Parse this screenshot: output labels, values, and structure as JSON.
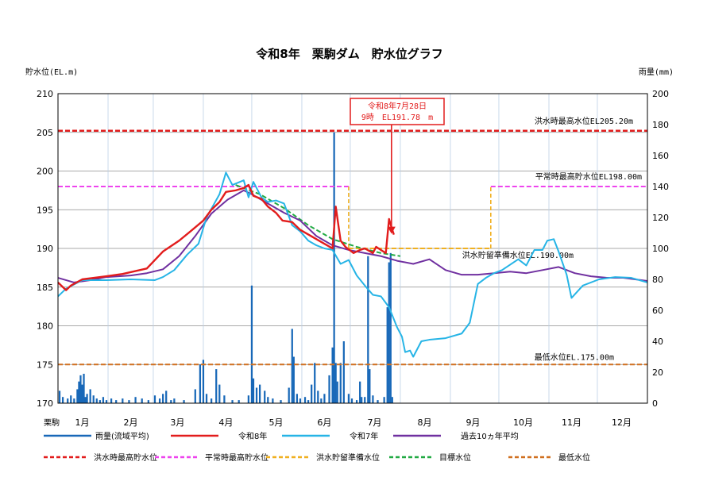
{
  "title": "令和8年　栗駒ダム　貯水位グラフ",
  "chart_data": {
    "type": "line",
    "ylabel_left": "貯水位(EL.m)",
    "ylabel_right": "雨量(mm)",
    "ylim_left": [
      170,
      210
    ],
    "ylim_right": [
      0,
      200
    ],
    "yticks_left": [
      "170",
      "175",
      "180",
      "185",
      "190",
      "195",
      "200",
      "205",
      "210"
    ],
    "yticks_right": [
      "0",
      "20",
      "40",
      "60",
      "80",
      "100",
      "120",
      "140",
      "160",
      "180",
      "200"
    ],
    "x_domain": [
      0,
      365
    ],
    "x_corner_label": "栗駒",
    "months": [
      {
        "label": "1月",
        "day": 15
      },
      {
        "label": "2月",
        "day": 45
      },
      {
        "label": "3月",
        "day": 74
      },
      {
        "label": "4月",
        "day": 104
      },
      {
        "label": "5月",
        "day": 135
      },
      {
        "label": "6月",
        "day": 165
      },
      {
        "label": "7月",
        "day": 196
      },
      {
        "label": "8月",
        "day": 227
      },
      {
        "label": "9月",
        "day": 257
      },
      {
        "label": "10月",
        "day": 288
      },
      {
        "label": "11月",
        "day": 318
      },
      {
        "label": "12月",
        "day": 349
      }
    ],
    "month_gridlines": [
      31,
      59,
      90,
      120,
      151,
      181,
      212,
      243,
      273,
      304,
      334
    ],
    "grid": true,
    "legend_placement": "bottom",
    "annotation": {
      "line1": "令和8年7月28日",
      "line2": "9時　EL191.78　m",
      "day": 208,
      "value": 191.78,
      "color": "#e21c1c"
    },
    "reference_lines": [
      {
        "name": "洪水時最高貯水位",
        "label": "洪水時最高水位EL205.20m",
        "value": 205.2,
        "color": "#e21c1c"
      },
      {
        "name": "平常時最高貯水位",
        "label": "平常時最高貯水位EL198.00m",
        "value": 198.0,
        "color": "#ee44ee",
        "segments": [
          [
            0,
            180,
            198.0
          ],
          [
            268,
            365,
            198.0
          ]
        ]
      },
      {
        "name": "洪水貯留準備水位",
        "label": "洪水貯留準備水位EL.190.00m",
        "value": 190.0,
        "color": "#f0b020",
        "segments": [
          [
            180,
            268,
            190.0
          ]
        ]
      },
      {
        "name": "最低水位",
        "label": "最低水位EL.175.00m",
        "value": 175.0,
        "color": "#d07020"
      }
    ],
    "target_line": {
      "name": "目標水位",
      "color": "#22aa44",
      "points": [
        [
          110,
          198.2
        ],
        [
          125,
          197.0
        ],
        [
          140,
          195.2
        ],
        [
          155,
          193.0
        ],
        [
          170,
          191.2
        ],
        [
          185,
          190.2
        ],
        [
          200,
          189.4
        ],
        [
          212,
          189.0
        ]
      ]
    },
    "series": [
      {
        "name": "令和8年",
        "color": "#e21c1c",
        "points": [
          [
            0,
            185.6
          ],
          [
            5,
            184.6
          ],
          [
            8,
            185.2
          ],
          [
            15,
            186.0
          ],
          [
            30,
            186.4
          ],
          [
            40,
            186.7
          ],
          [
            55,
            187.4
          ],
          [
            65,
            189.6
          ],
          [
            75,
            191.0
          ],
          [
            82,
            192.2
          ],
          [
            90,
            193.6
          ],
          [
            95,
            195.0
          ],
          [
            100,
            196.0
          ],
          [
            104,
            197.3
          ],
          [
            110,
            197.5
          ],
          [
            115,
            197.8
          ],
          [
            118,
            198.2
          ],
          [
            121,
            196.8
          ],
          [
            126,
            196.4
          ],
          [
            130,
            195.4
          ],
          [
            135,
            194.6
          ],
          [
            139,
            193.6
          ],
          [
            145,
            193.4
          ],
          [
            150,
            192.4
          ],
          [
            155,
            191.8
          ],
          [
            160,
            191.2
          ],
          [
            165,
            190.6
          ],
          [
            170,
            190.0
          ],
          [
            172,
            195.4
          ],
          [
            175,
            191.0
          ],
          [
            178,
            190.2
          ],
          [
            183,
            189.4
          ],
          [
            187,
            189.8
          ],
          [
            190,
            190.0
          ],
          [
            195,
            189.4
          ],
          [
            197,
            190.2
          ],
          [
            200,
            189.8
          ],
          [
            203,
            189.4
          ],
          [
            205,
            193.8
          ],
          [
            207,
            192.4
          ],
          [
            208,
            191.78
          ]
        ]
      },
      {
        "name": "令和7年",
        "color": "#26b4e6",
        "points": [
          [
            0,
            183.8
          ],
          [
            5,
            184.8
          ],
          [
            15,
            185.9
          ],
          [
            30,
            185.9
          ],
          [
            45,
            186.0
          ],
          [
            60,
            185.9
          ],
          [
            65,
            186.3
          ],
          [
            72,
            187.2
          ],
          [
            80,
            189.2
          ],
          [
            87,
            190.6
          ],
          [
            92,
            194.0
          ],
          [
            100,
            197.0
          ],
          [
            104,
            199.8
          ],
          [
            108,
            198.2
          ],
          [
            115,
            198.8
          ],
          [
            118,
            196.6
          ],
          [
            121,
            198.6
          ],
          [
            126,
            196.6
          ],
          [
            130,
            196.0
          ],
          [
            135,
            196.2
          ],
          [
            140,
            195.8
          ],
          [
            145,
            193.0
          ],
          [
            150,
            192.2
          ],
          [
            155,
            191.0
          ],
          [
            160,
            190.4
          ],
          [
            165,
            190.0
          ],
          [
            170,
            189.8
          ],
          [
            175,
            188.0
          ],
          [
            180,
            188.5
          ],
          [
            185,
            186.5
          ],
          [
            190,
            185.2
          ],
          [
            195,
            184.0
          ],
          [
            200,
            183.8
          ],
          [
            205,
            182.4
          ],
          [
            210,
            179.8
          ],
          [
            213,
            178.6
          ],
          [
            215,
            176.6
          ],
          [
            218,
            176.8
          ],
          [
            220,
            176.0
          ],
          [
            225,
            178.0
          ],
          [
            230,
            178.2
          ],
          [
            240,
            178.4
          ],
          [
            250,
            179.0
          ],
          [
            255,
            180.4
          ],
          [
            258,
            183.4
          ],
          [
            260,
            185.4
          ],
          [
            265,
            186.2
          ],
          [
            270,
            186.8
          ],
          [
            275,
            187.2
          ],
          [
            285,
            188.6
          ],
          [
            290,
            187.8
          ],
          [
            295,
            189.8
          ],
          [
            300,
            189.8
          ],
          [
            303,
            191.0
          ],
          [
            307,
            191.2
          ],
          [
            310,
            189.6
          ],
          [
            315,
            186.6
          ],
          [
            318,
            183.6
          ],
          [
            325,
            185.2
          ],
          [
            335,
            186.0
          ],
          [
            345,
            186.3
          ],
          [
            355,
            186.2
          ],
          [
            365,
            185.6
          ]
        ]
      },
      {
        "name": "過去10ヵ年平均",
        "color": "#7030a0",
        "points": [
          [
            0,
            186.2
          ],
          [
            10,
            185.6
          ],
          [
            20,
            185.9
          ],
          [
            30,
            186.3
          ],
          [
            45,
            186.5
          ],
          [
            55,
            186.8
          ],
          [
            65,
            187.3
          ],
          [
            75,
            189.0
          ],
          [
            85,
            191.6
          ],
          [
            95,
            194.5
          ],
          [
            105,
            196.3
          ],
          [
            115,
            197.5
          ],
          [
            120,
            197.0
          ],
          [
            130,
            195.8
          ],
          [
            140,
            194.6
          ],
          [
            150,
            193.6
          ],
          [
            160,
            191.6
          ],
          [
            170,
            190.4
          ],
          [
            180,
            189.8
          ],
          [
            190,
            189.4
          ],
          [
            200,
            189.0
          ],
          [
            210,
            188.4
          ],
          [
            220,
            188.0
          ],
          [
            230,
            188.6
          ],
          [
            240,
            187.2
          ],
          [
            250,
            186.6
          ],
          [
            260,
            186.6
          ],
          [
            270,
            186.8
          ],
          [
            280,
            187.0
          ],
          [
            290,
            186.8
          ],
          [
            300,
            187.2
          ],
          [
            310,
            187.6
          ],
          [
            320,
            186.8
          ],
          [
            330,
            186.4
          ],
          [
            340,
            186.2
          ],
          [
            350,
            186.2
          ],
          [
            365,
            185.8
          ]
        ]
      }
    ],
    "rainfall": {
      "name": "雨量(流域平均)",
      "color": "#1868b8",
      "points": [
        [
          1,
          8
        ],
        [
          3,
          4
        ],
        [
          6,
          3
        ],
        [
          8,
          5
        ],
        [
          10,
          3
        ],
        [
          12,
          9
        ],
        [
          13,
          14
        ],
        [
          14,
          18
        ],
        [
          15,
          12
        ],
        [
          16,
          19
        ],
        [
          17,
          4
        ],
        [
          18,
          6
        ],
        [
          20,
          9
        ],
        [
          22,
          5
        ],
        [
          24,
          3
        ],
        [
          26,
          2
        ],
        [
          28,
          4
        ],
        [
          30,
          2
        ],
        [
          33,
          3
        ],
        [
          36,
          2
        ],
        [
          40,
          3
        ],
        [
          44,
          2
        ],
        [
          48,
          4
        ],
        [
          52,
          3
        ],
        [
          56,
          2
        ],
        [
          60,
          5
        ],
        [
          63,
          3
        ],
        [
          65,
          6
        ],
        [
          67,
          8
        ],
        [
          70,
          2
        ],
        [
          72,
          3
        ],
        [
          78,
          2
        ],
        [
          85,
          9
        ],
        [
          88,
          25
        ],
        [
          90,
          28
        ],
        [
          92,
          6
        ],
        [
          95,
          3
        ],
        [
          98,
          22
        ],
        [
          100,
          12
        ],
        [
          103,
          5
        ],
        [
          108,
          2
        ],
        [
          112,
          2
        ],
        [
          118,
          5
        ],
        [
          120,
          76
        ],
        [
          121,
          16
        ],
        [
          123,
          10
        ],
        [
          125,
          12
        ],
        [
          128,
          8
        ],
        [
          130,
          4
        ],
        [
          133,
          3
        ],
        [
          138,
          2
        ],
        [
          143,
          10
        ],
        [
          145,
          48
        ],
        [
          146,
          30
        ],
        [
          148,
          6
        ],
        [
          150,
          3
        ],
        [
          153,
          4
        ],
        [
          155,
          2
        ],
        [
          157,
          12
        ],
        [
          159,
          26
        ],
        [
          161,
          8
        ],
        [
          163,
          3
        ],
        [
          165,
          6
        ],
        [
          168,
          18
        ],
        [
          170,
          36
        ],
        [
          171,
          175
        ],
        [
          172,
          26
        ],
        [
          173,
          14
        ],
        [
          175,
          26
        ],
        [
          177,
          40
        ],
        [
          180,
          6
        ],
        [
          182,
          3
        ],
        [
          185,
          2
        ],
        [
          187,
          14
        ],
        [
          188,
          4
        ],
        [
          190,
          4
        ],
        [
          192,
          95
        ],
        [
          193,
          22
        ],
        [
          195,
          5
        ],
        [
          198,
          2
        ],
        [
          202,
          4
        ],
        [
          204,
          62
        ],
        [
          205,
          91
        ],
        [
          206,
          97
        ],
        [
          207,
          4
        ]
      ]
    }
  },
  "legend": [
    {
      "label": "雨量(流域平均)",
      "color": "#1868b8",
      "style": "solid"
    },
    {
      "label": "令和8年",
      "color": "#e21c1c",
      "style": "solid"
    },
    {
      "label": "令和7年",
      "color": "#26b4e6",
      "style": "solid"
    },
    {
      "label": "過去10ヵ年平均",
      "color": "#7030a0",
      "style": "solid"
    },
    {
      "label": "洪水時最高貯水位",
      "color": "#e21c1c",
      "style": "dashed"
    },
    {
      "label": "平常時最高貯水位",
      "color": "#ee44ee",
      "style": "dashed"
    },
    {
      "label": "洪水貯留準備水位",
      "color": "#f0b020",
      "style": "dashed"
    },
    {
      "label": "目標水位",
      "color": "#22aa44",
      "style": "dashed"
    },
    {
      "label": "最低水位",
      "color": "#d07020",
      "style": "dashed"
    }
  ]
}
